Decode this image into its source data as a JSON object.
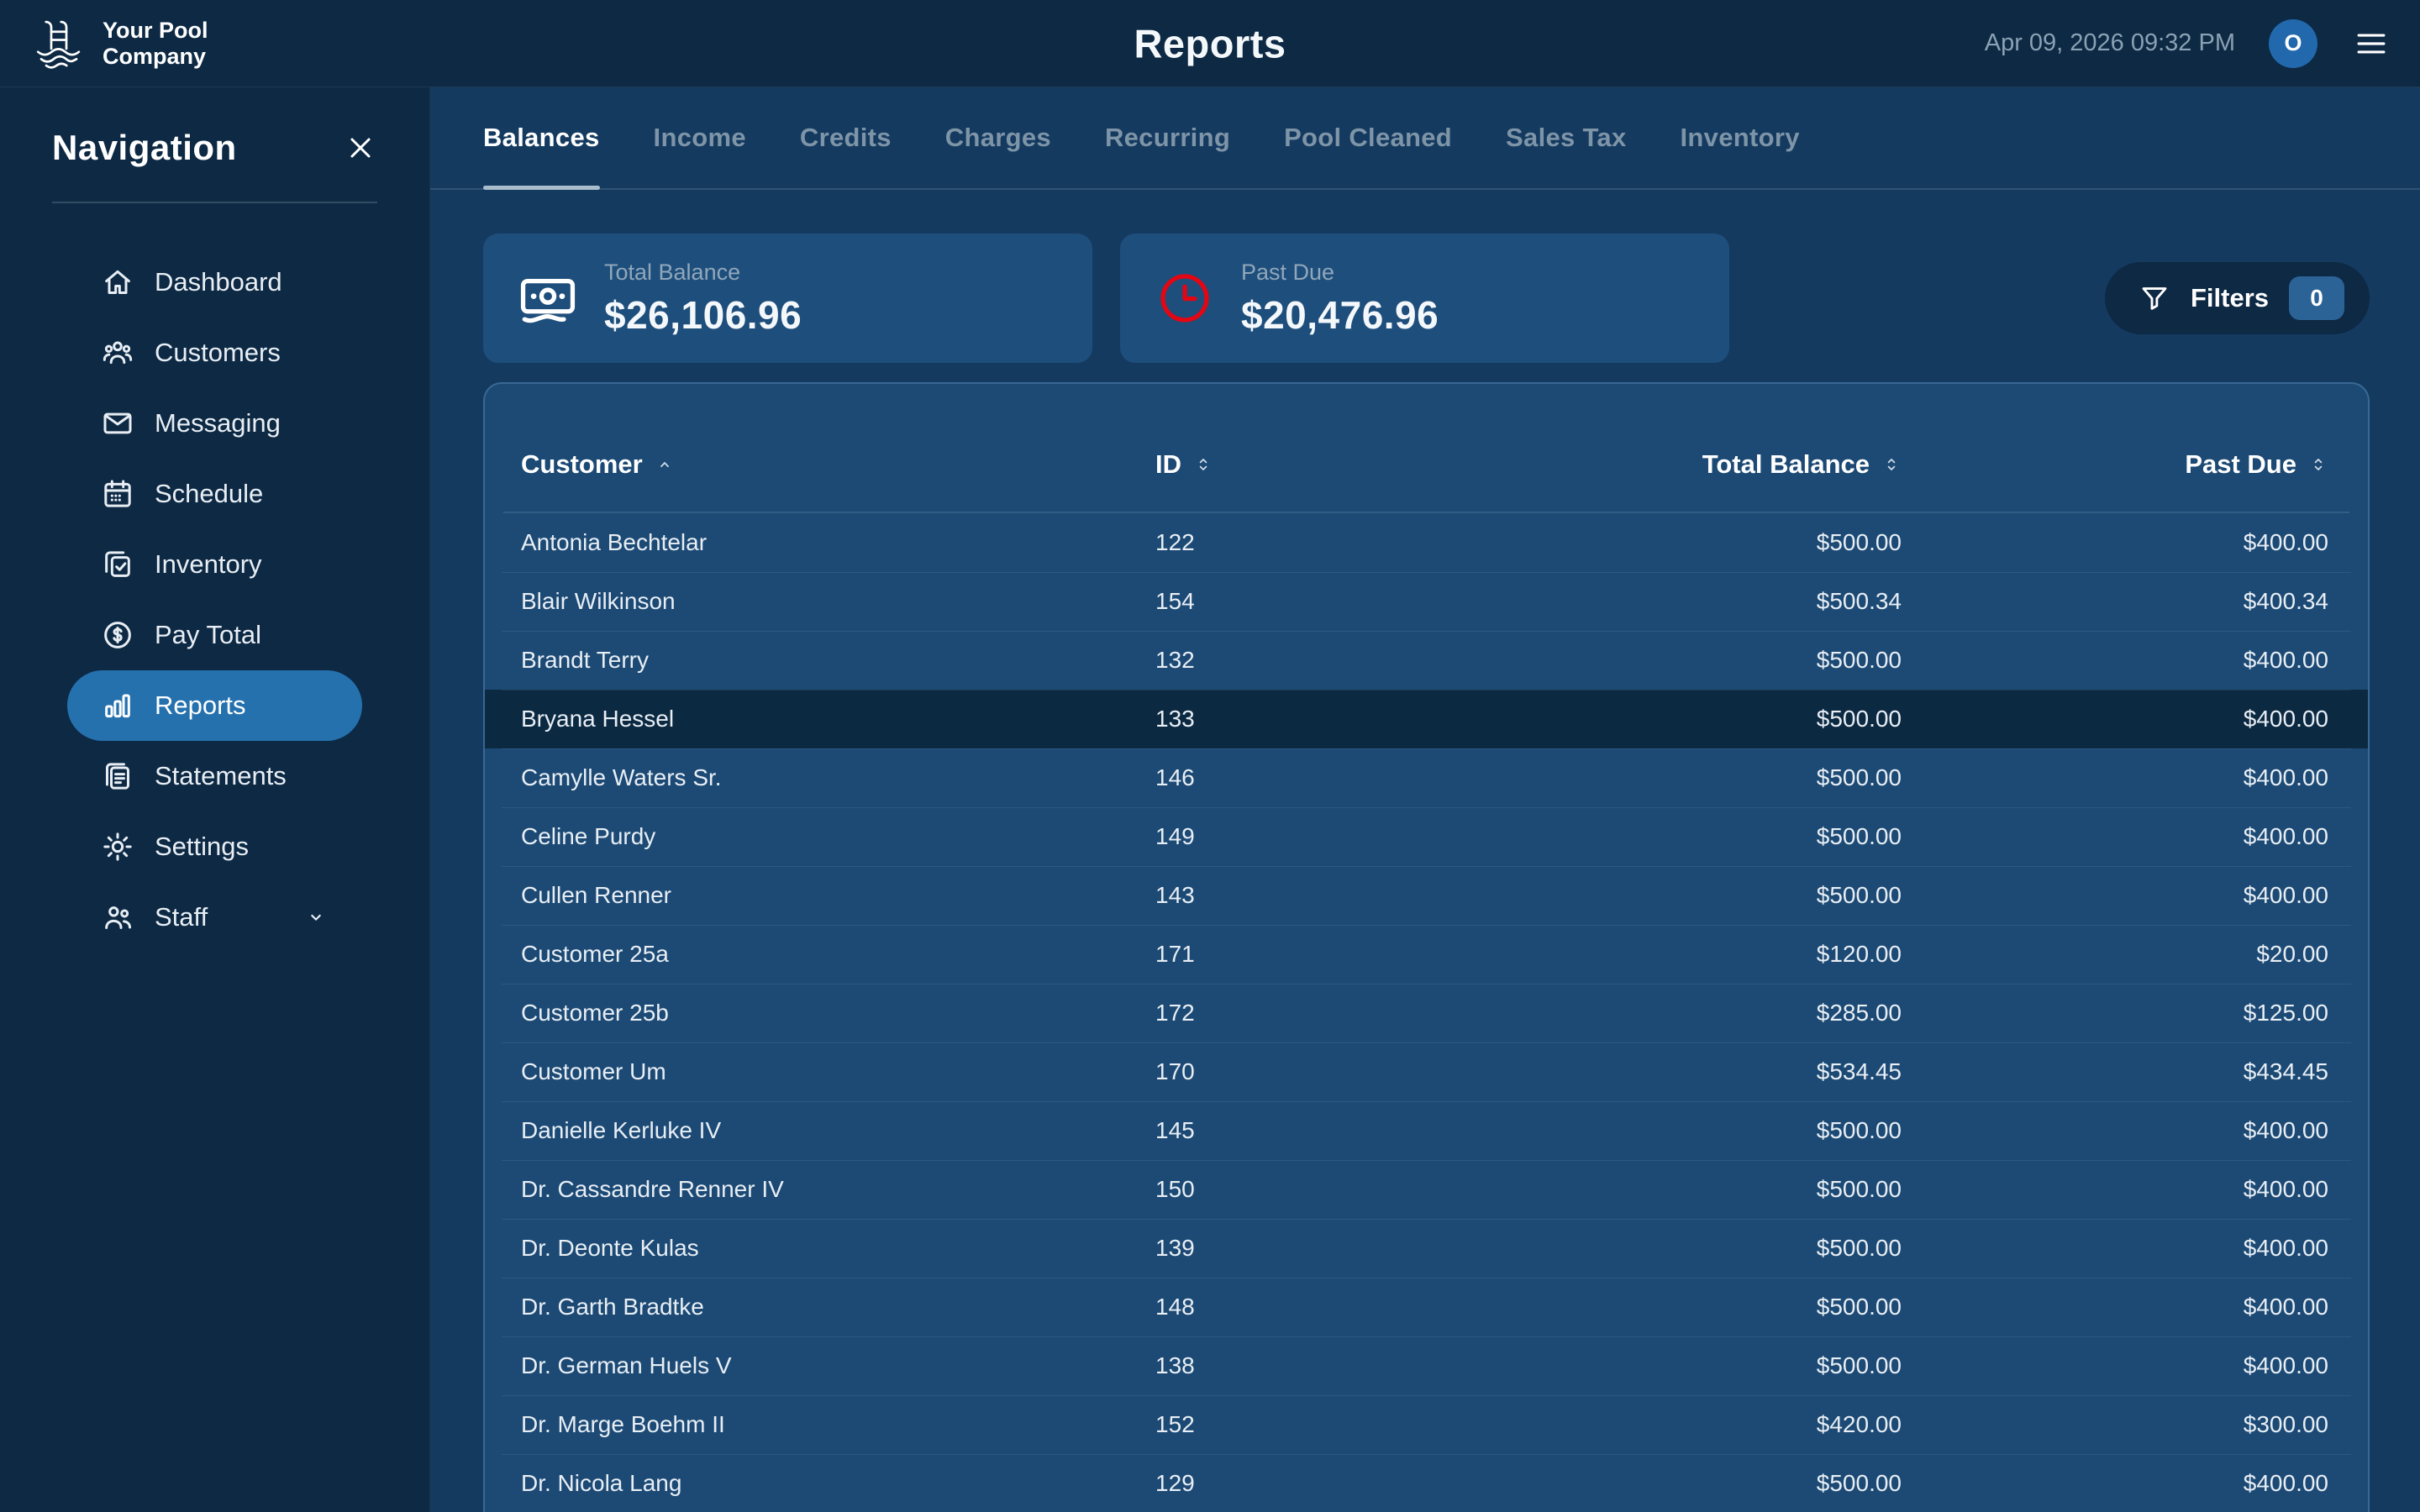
{
  "brand": {
    "name_line1": "Your Pool",
    "name_line2": "Company",
    "logo_icon": "pool-ladder-icon"
  },
  "header": {
    "title": "Reports",
    "timestamp": "Apr 09, 2026 09:32 PM",
    "avatar_initial": "O",
    "menu_icon": "hamburger-icon"
  },
  "sidebar": {
    "title": "Navigation",
    "close_icon": "close-icon",
    "items": [
      {
        "label": "Dashboard",
        "icon": "home-icon",
        "active": false
      },
      {
        "label": "Customers",
        "icon": "customers-icon",
        "active": false
      },
      {
        "label": "Messaging",
        "icon": "envelope-icon",
        "active": false
      },
      {
        "label": "Schedule",
        "icon": "calendar-icon",
        "active": false
      },
      {
        "label": "Inventory",
        "icon": "clipboard-check-icon",
        "active": false
      },
      {
        "label": "Pay Total",
        "icon": "dollar-circle-icon",
        "active": false
      },
      {
        "label": "Reports",
        "icon": "bar-chart-icon",
        "active": true
      },
      {
        "label": "Statements",
        "icon": "clipboard-list-icon",
        "active": false
      },
      {
        "label": "Settings",
        "icon": "gear-icon",
        "active": false
      },
      {
        "label": "Staff",
        "icon": "staff-icon",
        "active": false,
        "trailing_icon": "chevron-down-icon"
      }
    ]
  },
  "tabs": {
    "active": "Balances",
    "items": [
      "Balances",
      "Income",
      "Credits",
      "Charges",
      "Recurring",
      "Pool Cleaned",
      "Sales Tax",
      "Inventory"
    ]
  },
  "summary_cards": [
    {
      "label": "Total Balance",
      "value": "$26,106.96",
      "icon": "banknote-icon",
      "icon_color": "#ffffff"
    },
    {
      "label": "Past Due",
      "value": "$20,476.96",
      "icon": "clock-icon",
      "icon_color": "#e30613"
    }
  ],
  "filters_button": {
    "label": "Filters",
    "count": "0",
    "icon": "funnel-icon"
  },
  "table": {
    "columns": [
      {
        "label": "Customer",
        "sort": "asc",
        "align": "left"
      },
      {
        "label": "ID",
        "sort": "none",
        "align": "left"
      },
      {
        "label": "Total Balance",
        "sort": "none",
        "align": "right"
      },
      {
        "label": "Past Due",
        "sort": "none",
        "align": "right"
      }
    ],
    "highlighted_row_index": 3,
    "rows": [
      {
        "customer": "Antonia Bechtelar",
        "id": "122",
        "total_balance": "$500.00",
        "past_due": "$400.00"
      },
      {
        "customer": "Blair Wilkinson",
        "id": "154",
        "total_balance": "$500.34",
        "past_due": "$400.34"
      },
      {
        "customer": "Brandt Terry",
        "id": "132",
        "total_balance": "$500.00",
        "past_due": "$400.00"
      },
      {
        "customer": "Bryana Hessel",
        "id": "133",
        "total_balance": "$500.00",
        "past_due": "$400.00"
      },
      {
        "customer": "Camylle Waters Sr.",
        "id": "146",
        "total_balance": "$500.00",
        "past_due": "$400.00"
      },
      {
        "customer": "Celine Purdy",
        "id": "149",
        "total_balance": "$500.00",
        "past_due": "$400.00"
      },
      {
        "customer": "Cullen Renner",
        "id": "143",
        "total_balance": "$500.00",
        "past_due": "$400.00"
      },
      {
        "customer": "Customer 25a",
        "id": "171",
        "total_balance": "$120.00",
        "past_due": "$20.00"
      },
      {
        "customer": "Customer 25b",
        "id": "172",
        "total_balance": "$285.00",
        "past_due": "$125.00"
      },
      {
        "customer": "Customer Um",
        "id": "170",
        "total_balance": "$534.45",
        "past_due": "$434.45"
      },
      {
        "customer": "Danielle Kerluke IV",
        "id": "145",
        "total_balance": "$500.00",
        "past_due": "$400.00"
      },
      {
        "customer": "Dr. Cassandre Renner IV",
        "id": "150",
        "total_balance": "$500.00",
        "past_due": "$400.00"
      },
      {
        "customer": "Dr. Deonte Kulas",
        "id": "139",
        "total_balance": "$500.00",
        "past_due": "$400.00"
      },
      {
        "customer": "Dr. Garth Bradtke",
        "id": "148",
        "total_balance": "$500.00",
        "past_due": "$400.00"
      },
      {
        "customer": "Dr. German Huels V",
        "id": "138",
        "total_balance": "$500.00",
        "past_due": "$400.00"
      },
      {
        "customer": "Dr. Marge Boehm II",
        "id": "152",
        "total_balance": "$420.00",
        "past_due": "$300.00"
      },
      {
        "customer": "Dr. Nicola Lang",
        "id": "129",
        "total_balance": "$500.00",
        "past_due": "$400.00"
      }
    ]
  },
  "colors": {
    "top_bar_bg": "#0d2944",
    "content_bg": "#143a60",
    "panel_bg": "#1c4a75",
    "card_bg": "#1e4e7c",
    "active_nav_bg": "#2571ae",
    "highlight_row_bg": "#0c2942",
    "avatar_bg": "#2268ac",
    "badge_bg": "#2c6397",
    "past_due_red": "#e30613"
  }
}
